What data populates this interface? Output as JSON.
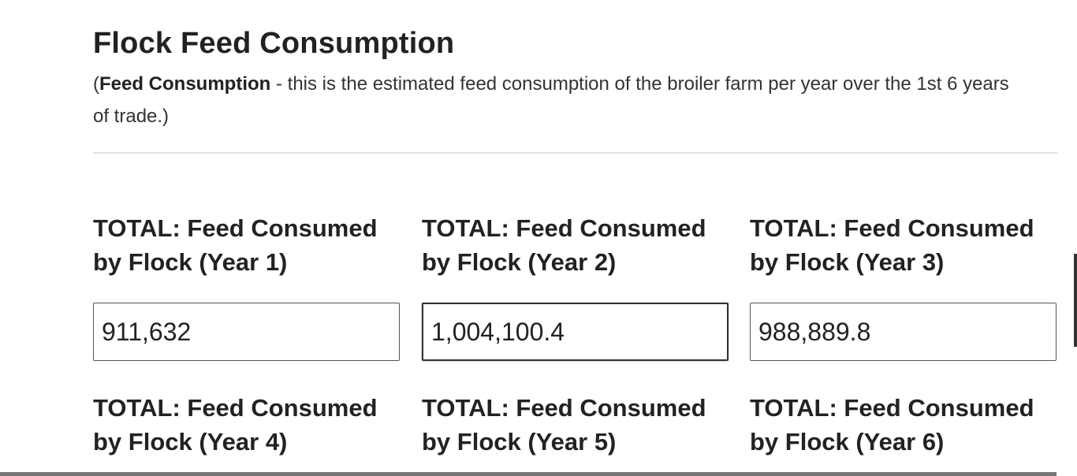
{
  "section": {
    "title": "Flock Feed Consumption",
    "description": {
      "open_paren": "(",
      "bold_term": "Feed Consumption",
      "text": " - this is the estimated feed consumption of the broiler farm per year over the 1st 6 years of trade.)"
    }
  },
  "fields": [
    {
      "label": "TOTAL: Feed Consumed by Flock (Year 1)",
      "value": "911,632"
    },
    {
      "label": "TOTAL: Feed Consumed by Flock (Year 2)",
      "value": "1,004,100.4"
    },
    {
      "label": "TOTAL: Feed Consumed by Flock (Year 3)",
      "value": "988,889.8"
    },
    {
      "label": "TOTAL: Feed Consumed by Flock (Year 4)",
      "value": ""
    },
    {
      "label": "TOTAL: Feed Consumed by Flock (Year 5)",
      "value": ""
    },
    {
      "label": "TOTAL: Feed Consumed by Flock (Year 6)",
      "value": ""
    }
  ],
  "colors": {
    "text": "#222222",
    "divider": "#e0e0e0",
    "input_border": "#555555"
  }
}
